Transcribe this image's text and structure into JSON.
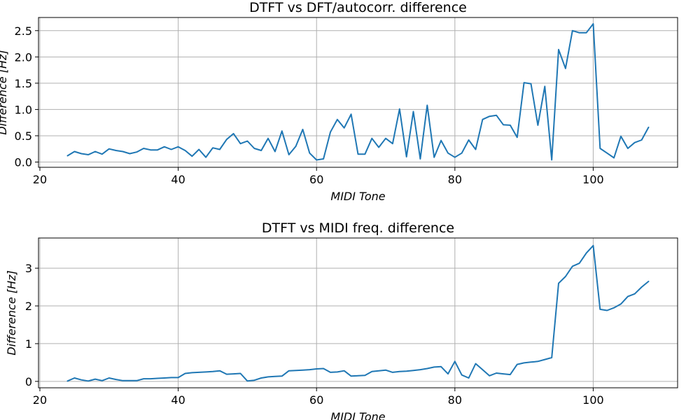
{
  "chart_data": [
    {
      "type": "line",
      "title": "DTFT vs DFT/autocorr. difference",
      "xlabel": "MIDI Tone",
      "ylabel": "Difference [Hz]",
      "xlim": [
        19.8,
        112.2
      ],
      "ylim": [
        -0.1,
        2.75
      ],
      "xticks": [
        20,
        40,
        60,
        80,
        100
      ],
      "yticks": [
        0.0,
        0.5,
        1.0,
        1.5,
        2.0,
        2.5
      ],
      "ytick_labels": [
        "0.0",
        "0.5",
        "1.0",
        "1.5",
        "2.0",
        "2.5"
      ],
      "grid": true,
      "color": "#1f77b4",
      "x": [
        24,
        25,
        26,
        27,
        28,
        29,
        30,
        31,
        32,
        33,
        34,
        35,
        36,
        37,
        38,
        39,
        40,
        41,
        42,
        43,
        44,
        45,
        46,
        47,
        48,
        49,
        50,
        51,
        52,
        53,
        54,
        55,
        56,
        57,
        58,
        59,
        60,
        61,
        62,
        63,
        64,
        65,
        66,
        67,
        68,
        69,
        70,
        71,
        72,
        73,
        74,
        75,
        76,
        77,
        78,
        79,
        80,
        81,
        82,
        83,
        84,
        85,
        86,
        87,
        88,
        89,
        90,
        91,
        92,
        93,
        94,
        95,
        96,
        97,
        98,
        99,
        100,
        101,
        102,
        103,
        104,
        105,
        106,
        107,
        108
      ],
      "y": [
        0.12,
        0.2,
        0.16,
        0.14,
        0.2,
        0.15,
        0.25,
        0.22,
        0.2,
        0.16,
        0.19,
        0.26,
        0.23,
        0.23,
        0.29,
        0.24,
        0.29,
        0.22,
        0.11,
        0.24,
        0.09,
        0.27,
        0.24,
        0.43,
        0.54,
        0.35,
        0.4,
        0.26,
        0.22,
        0.45,
        0.2,
        0.59,
        0.14,
        0.3,
        0.62,
        0.17,
        0.04,
        0.06,
        0.57,
        0.81,
        0.65,
        0.91,
        0.15,
        0.15,
        0.45,
        0.28,
        0.45,
        0.35,
        1.01,
        0.1,
        0.96,
        0.06,
        1.08,
        0.09,
        0.41,
        0.17,
        0.09,
        0.17,
        0.42,
        0.24,
        0.81,
        0.87,
        0.89,
        0.71,
        0.7,
        0.47,
        1.51,
        1.49,
        0.7,
        1.44,
        0.04,
        2.14,
        1.78,
        2.5,
        2.46,
        2.46,
        2.63,
        0.26,
        0.17,
        0.08,
        0.49,
        0.26,
        0.37,
        0.42,
        0.66
      ]
    },
    {
      "type": "line",
      "title": "DTFT vs MIDI freq. difference",
      "xlabel": "MIDI Tone",
      "ylabel": "Difference [Hz]",
      "xlim": [
        19.8,
        112.2
      ],
      "ylim": [
        -0.17,
        3.8
      ],
      "xticks": [
        20,
        40,
        60,
        80,
        100
      ],
      "yticks": [
        0,
        1,
        2,
        3
      ],
      "ytick_labels": [
        "0",
        "1",
        "2",
        "3"
      ],
      "grid": true,
      "color": "#1f77b4",
      "x": [
        24,
        25,
        26,
        27,
        28,
        29,
        30,
        31,
        32,
        33,
        34,
        35,
        36,
        37,
        38,
        39,
        40,
        41,
        42,
        43,
        44,
        45,
        46,
        47,
        48,
        49,
        50,
        51,
        52,
        53,
        54,
        55,
        56,
        57,
        58,
        59,
        60,
        61,
        62,
        63,
        64,
        65,
        66,
        67,
        68,
        69,
        70,
        71,
        72,
        73,
        74,
        75,
        76,
        77,
        78,
        79,
        80,
        81,
        82,
        83,
        84,
        85,
        86,
        87,
        88,
        89,
        90,
        91,
        92,
        93,
        94,
        95,
        96,
        97,
        98,
        99,
        100,
        101,
        102,
        103,
        104,
        105,
        106,
        107,
        108
      ],
      "y": [
        0.01,
        0.09,
        0.04,
        0.01,
        0.06,
        0.02,
        0.09,
        0.05,
        0.02,
        0.02,
        0.02,
        0.07,
        0.07,
        0.08,
        0.09,
        0.1,
        0.1,
        0.21,
        0.23,
        0.24,
        0.25,
        0.26,
        0.28,
        0.19,
        0.2,
        0.21,
        0.01,
        0.03,
        0.09,
        0.12,
        0.13,
        0.14,
        0.28,
        0.29,
        0.3,
        0.31,
        0.33,
        0.34,
        0.24,
        0.25,
        0.28,
        0.14,
        0.15,
        0.16,
        0.26,
        0.28,
        0.3,
        0.24,
        0.26,
        0.27,
        0.29,
        0.31,
        0.34,
        0.38,
        0.39,
        0.2,
        0.53,
        0.17,
        0.09,
        0.47,
        0.31,
        0.15,
        0.22,
        0.2,
        0.18,
        0.45,
        0.49,
        0.51,
        0.53,
        0.58,
        0.63,
        2.6,
        2.78,
        3.05,
        3.13,
        3.4,
        3.6,
        1.91,
        1.88,
        1.95,
        2.05,
        2.25,
        2.32,
        2.5,
        2.65
      ]
    }
  ]
}
